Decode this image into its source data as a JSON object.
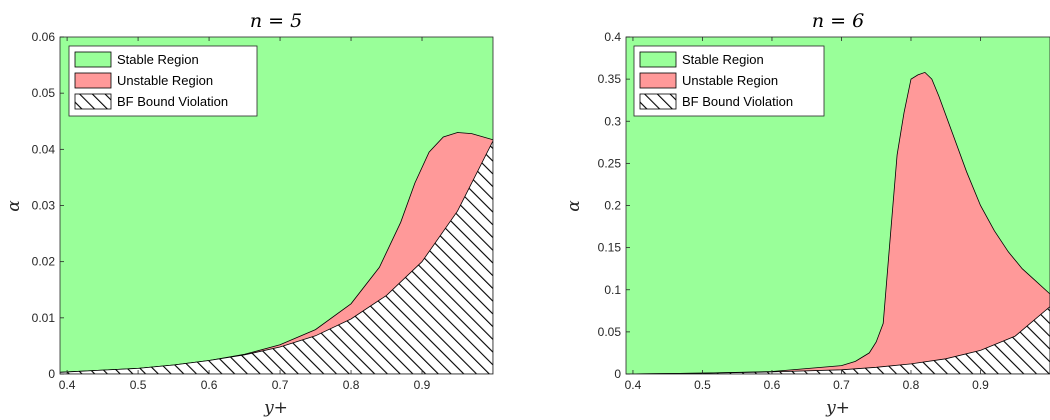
{
  "figure": {
    "colors": {
      "stable": "#99ff99",
      "unstable": "#ff9999",
      "edge": "#000000",
      "axis": "#262626"
    }
  },
  "chart_data": [
    {
      "type": "area",
      "title": "n = 5",
      "xlabel": "y+",
      "ylabel": "α",
      "xlim": [
        0.39,
        1.0
      ],
      "ylim": [
        0,
        0.06
      ],
      "xticks": [
        0.4,
        0.5,
        0.6,
        0.7,
        0.8,
        0.9
      ],
      "xtick_labels": [
        "0.4",
        "0.5",
        "0.6",
        "0.7",
        "0.8",
        "0.9"
      ],
      "yticks": [
        0,
        0.01,
        0.02,
        0.03,
        0.04,
        0.05,
        0.06
      ],
      "ytick_labels": [
        "0",
        "0.01",
        "0.02",
        "0.03",
        "0.04",
        "0.05",
        "0.06"
      ],
      "legend": {
        "location": "top-left",
        "entries": [
          "Stable Region",
          "Unstable Region",
          "BF Bound Violation"
        ]
      },
      "series": [
        {
          "name": "BF Bound Violation",
          "fill": "hatched",
          "x": [
            0.39,
            0.45,
            0.5,
            0.55,
            0.6,
            0.65,
            0.7,
            0.75,
            0.8,
            0.85,
            0.9,
            0.95,
            1.0
          ],
          "y": [
            0.0003,
            0.0007,
            0.001,
            0.0016,
            0.0024,
            0.0034,
            0.0048,
            0.0068,
            0.0098,
            0.014,
            0.02,
            0.029,
            0.0415
          ]
        },
        {
          "name": "Unstable Region",
          "fill": "#ff9999",
          "x": [
            0.39,
            0.45,
            0.5,
            0.55,
            0.6,
            0.65,
            0.7,
            0.75,
            0.8,
            0.84,
            0.87,
            0.89,
            0.91,
            0.93,
            0.95,
            0.97,
            1.0
          ],
          "y": [
            0.0003,
            0.0007,
            0.001,
            0.0016,
            0.0024,
            0.0035,
            0.0052,
            0.0079,
            0.0125,
            0.019,
            0.027,
            0.034,
            0.0395,
            0.0422,
            0.043,
            0.0428,
            0.0417
          ]
        }
      ]
    },
    {
      "type": "area",
      "title": "n = 6",
      "xlabel": "y+",
      "ylabel": "α",
      "xlim": [
        0.39,
        1.0
      ],
      "ylim": [
        0,
        0.4
      ],
      "xticks": [
        0.4,
        0.5,
        0.6,
        0.7,
        0.8,
        0.9
      ],
      "xtick_labels": [
        "0.4",
        "0.5",
        "0.6",
        "0.7",
        "0.8",
        "0.9"
      ],
      "yticks": [
        0,
        0.05,
        0.1,
        0.15,
        0.2,
        0.25,
        0.3,
        0.35,
        0.4
      ],
      "ytick_labels": [
        "0",
        "0.05",
        "0.1",
        "0.15",
        "0.2",
        "0.25",
        "0.3",
        "0.35",
        "0.4"
      ],
      "legend": {
        "location": "top-left",
        "entries": [
          "Stable Region",
          "Unstable Region",
          "BF Bound Violation"
        ]
      },
      "series": [
        {
          "name": "BF Bound Violation",
          "fill": "hatched",
          "x": [
            0.39,
            0.5,
            0.6,
            0.7,
            0.75,
            0.8,
            0.85,
            0.9,
            0.95,
            1.0
          ],
          "y": [
            0.0,
            0.001,
            0.0025,
            0.005,
            0.008,
            0.012,
            0.018,
            0.028,
            0.045,
            0.08
          ]
        },
        {
          "name": "Unstable Region",
          "fill": "#ff9999",
          "x": [
            0.39,
            0.5,
            0.6,
            0.7,
            0.72,
            0.74,
            0.75,
            0.76,
            0.77,
            0.78,
            0.79,
            0.8,
            0.81,
            0.82,
            0.83,
            0.84,
            0.86,
            0.88,
            0.9,
            0.92,
            0.94,
            0.96,
            0.98,
            1.0
          ],
          "y": [
            0.0,
            0.001,
            0.003,
            0.01,
            0.015,
            0.025,
            0.038,
            0.06,
            0.16,
            0.26,
            0.31,
            0.35,
            0.355,
            0.358,
            0.35,
            0.33,
            0.285,
            0.24,
            0.2,
            0.17,
            0.145,
            0.125,
            0.11,
            0.095
          ]
        }
      ]
    }
  ]
}
